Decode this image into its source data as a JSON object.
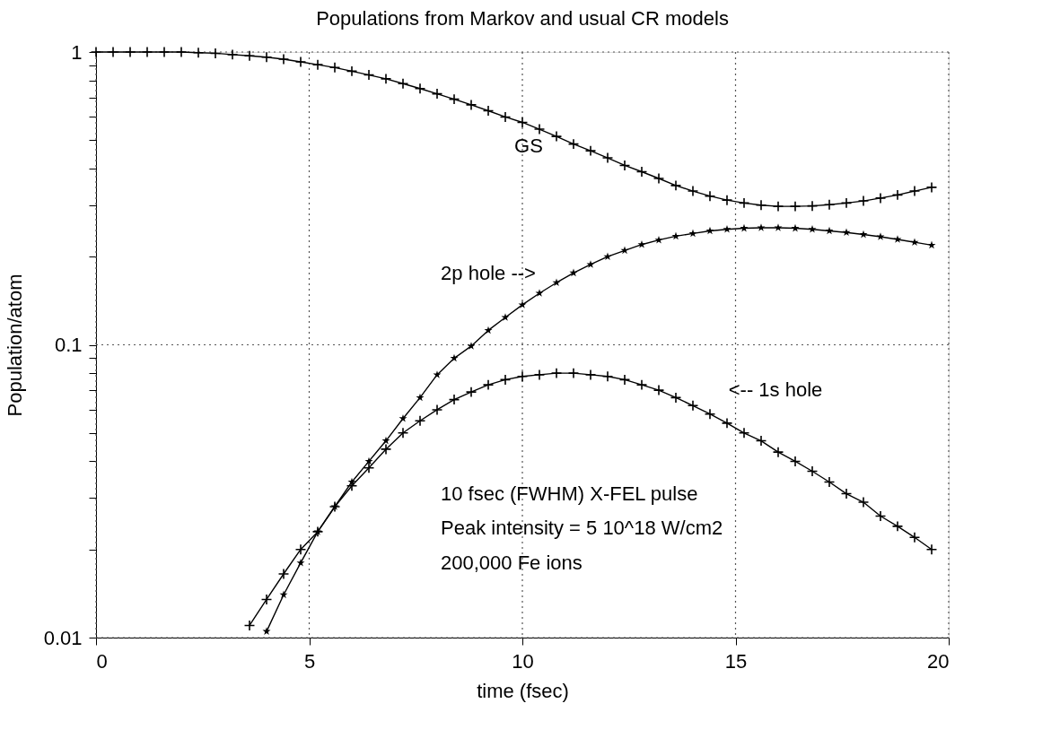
{
  "chart_data": {
    "type": "line",
    "title": "Populations from Markov and usual CR models",
    "xlabel": "time (fsec)",
    "ylabel": "Population/atom",
    "x": [
      0,
      0.4,
      0.8,
      1.2,
      1.6,
      2.0,
      2.4,
      2.8,
      3.2,
      3.6,
      4.0,
      4.4,
      4.8,
      5.2,
      5.6,
      6.0,
      6.4,
      6.8,
      7.2,
      7.6,
      8.0,
      8.4,
      8.8,
      9.2,
      9.6,
      10.0,
      10.4,
      10.8,
      11.2,
      11.6,
      12.0,
      12.4,
      12.8,
      13.2,
      13.6,
      14.0,
      14.4,
      14.8,
      15.2,
      15.6,
      16.0,
      16.4,
      16.8,
      17.2,
      17.6,
      18.0,
      18.4,
      18.8,
      19.2,
      19.6
    ],
    "series": [
      {
        "color": "#000000",
        "marker": "cross",
        "values": [
          1,
          1,
          1,
          1,
          1,
          1,
          0.995,
          0.99,
          0.98,
          0.97,
          0.96,
          0.945,
          0.925,
          0.905,
          0.885,
          0.86,
          0.835,
          0.81,
          0.78,
          0.75,
          0.72,
          0.69,
          0.66,
          0.63,
          0.6,
          0.575,
          0.545,
          0.515,
          0.485,
          0.46,
          0.435,
          0.41,
          0.39,
          0.37,
          0.35,
          0.335,
          0.322,
          0.312,
          0.305,
          0.3,
          0.297,
          0.297,
          0.298,
          0.301,
          0.305,
          0.31,
          0.317,
          0.325,
          0.335,
          0.345
        ]
      },
      {
        "color": "#000000",
        "marker": "star",
        "values": [
          null,
          null,
          null,
          null,
          null,
          null,
          null,
          null,
          null,
          null,
          0.0105,
          0.014,
          0.018,
          0.023,
          0.028,
          0.034,
          0.04,
          0.047,
          0.056,
          0.066,
          0.079,
          0.09,
          0.099,
          0.112,
          0.124,
          0.137,
          0.15,
          0.163,
          0.176,
          0.188,
          0.2,
          0.21,
          0.22,
          0.228,
          0.235,
          0.24,
          0.245,
          0.248,
          0.25,
          0.251,
          0.251,
          0.25,
          0.248,
          0.245,
          0.242,
          0.238,
          0.234,
          0.229,
          0.224,
          0.219
        ]
      },
      {
        "color": "#000000",
        "marker": "cross",
        "values": [
          null,
          null,
          null,
          null,
          null,
          null,
          null,
          null,
          null,
          0.011,
          0.0135,
          0.0165,
          0.02,
          0.023,
          0.028,
          0.033,
          0.038,
          0.044,
          0.05,
          0.055,
          0.06,
          0.065,
          0.069,
          0.073,
          0.076,
          0.078,
          0.079,
          0.08,
          0.08,
          0.079,
          0.078,
          0.076,
          0.073,
          0.07,
          0.066,
          0.062,
          0.058,
          0.054,
          0.05,
          0.047,
          0.043,
          0.04,
          0.037,
          0.034,
          0.031,
          0.029,
          0.026,
          0.024,
          0.022,
          0.02
        ]
      }
    ],
    "xlim": [
      0,
      20
    ],
    "xticks": [
      0,
      5,
      10,
      15,
      20
    ],
    "ylim": [
      0.01,
      1
    ],
    "log": true,
    "yticks": [
      0.01,
      {
        "value": 0.02,
        "label": null
      },
      {
        "value": 0.03,
        "label": null
      },
      {
        "value": 0.04,
        "label": null
      },
      {
        "value": 0.05,
        "label": null
      },
      {
        "value": 0.06,
        "label": null
      },
      {
        "value": 0.07,
        "label": null
      },
      {
        "value": 0.08,
        "label": null
      },
      {
        "value": 0.09,
        "label": null
      },
      0.1,
      {
        "value": 0.2,
        "label": null
      },
      {
        "value": 0.3,
        "label": null
      },
      {
        "value": 0.4,
        "label": null
      },
      {
        "value": 0.5,
        "label": null
      },
      {
        "value": 0.6,
        "label": null
      },
      {
        "value": 0.7,
        "label": null
      },
      {
        "value": 0.8,
        "label": null
      },
      {
        "value": 0.9,
        "label": null
      },
      1
    ],
    "grid": true,
    "line_style": "solid",
    "annotations": [
      "GS",
      "2p hole -->",
      "<-- 1s hole",
      "10 fsec (FWHM) X-FEL pulse",
      "Peak intensity = 5 10^18 W/cm2",
      "200,000 Fe ions"
    ]
  }
}
